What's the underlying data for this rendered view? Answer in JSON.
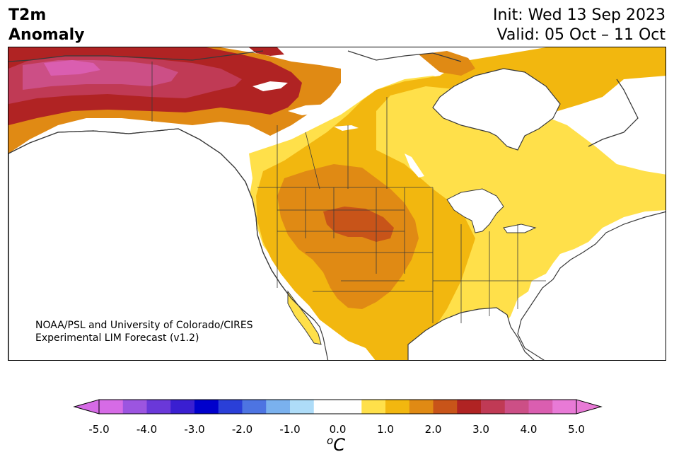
{
  "title": {
    "left_line1": "T2m",
    "left_line2": "Anomaly",
    "right_line1": "Init: Wed 13 Sep 2023",
    "right_line2": "Valid: 05 Oct – 11 Oct"
  },
  "credit": {
    "line1": "NOAA/PSL and University of Colorado/CIRES",
    "line2": "Experimental LIM Forecast (v1.2)"
  },
  "colorbar": {
    "ticks": [
      "-5.0",
      "-4.0",
      "-3.0",
      "-2.0",
      "-1.0",
      "0.0",
      "1.0",
      "2.0",
      "3.0",
      "4.0",
      "5.0"
    ],
    "unit_base": "C",
    "unit_sup": "o",
    "colors": [
      "#d66be6",
      "#9c55e0",
      "#6a38d9",
      "#3a1fd1",
      "#0000cc",
      "#2a3fd8",
      "#4d74e2",
      "#7ab1ee",
      "#aedcf8",
      "#ffffff",
      "#ffffff",
      "#ffe04a",
      "#f2b70f",
      "#e08a14",
      "#c85419",
      "#b02323",
      "#c03a55",
      "#cc4f86",
      "#da5eb0",
      "#e87ad6"
    ]
  },
  "map": {
    "palette": {
      "light_yellow": "#ffe04a",
      "gold": "#f2b70f",
      "orange": "#e08a14",
      "dark_orange": "#c85419",
      "red": "#b02323",
      "crimson": "#c03a55",
      "magenta": "#cc4f86",
      "pink": "#da5eb0",
      "water": "#ffffff",
      "border": "#3a3a3a"
    }
  }
}
